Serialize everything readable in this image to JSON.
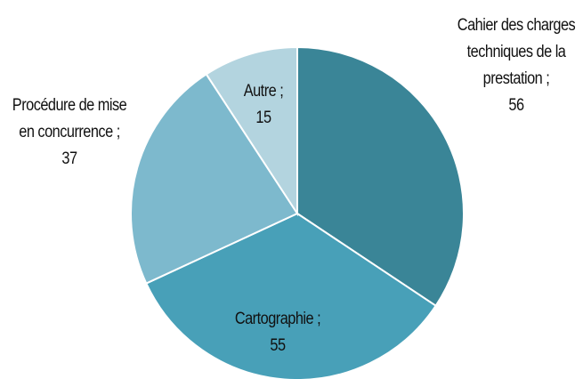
{
  "chart_data": {
    "type": "pie",
    "categories": [
      "Cahier des charges techniques de la prestation",
      "Cartographie",
      "Procédure de mise en concurrence",
      "Autre"
    ],
    "values": [
      56,
      55,
      37,
      15
    ],
    "colors": [
      "#3a8597",
      "#48a0b8",
      "#7db9cd",
      "#b3d4df"
    ],
    "label_separator": ";"
  }
}
